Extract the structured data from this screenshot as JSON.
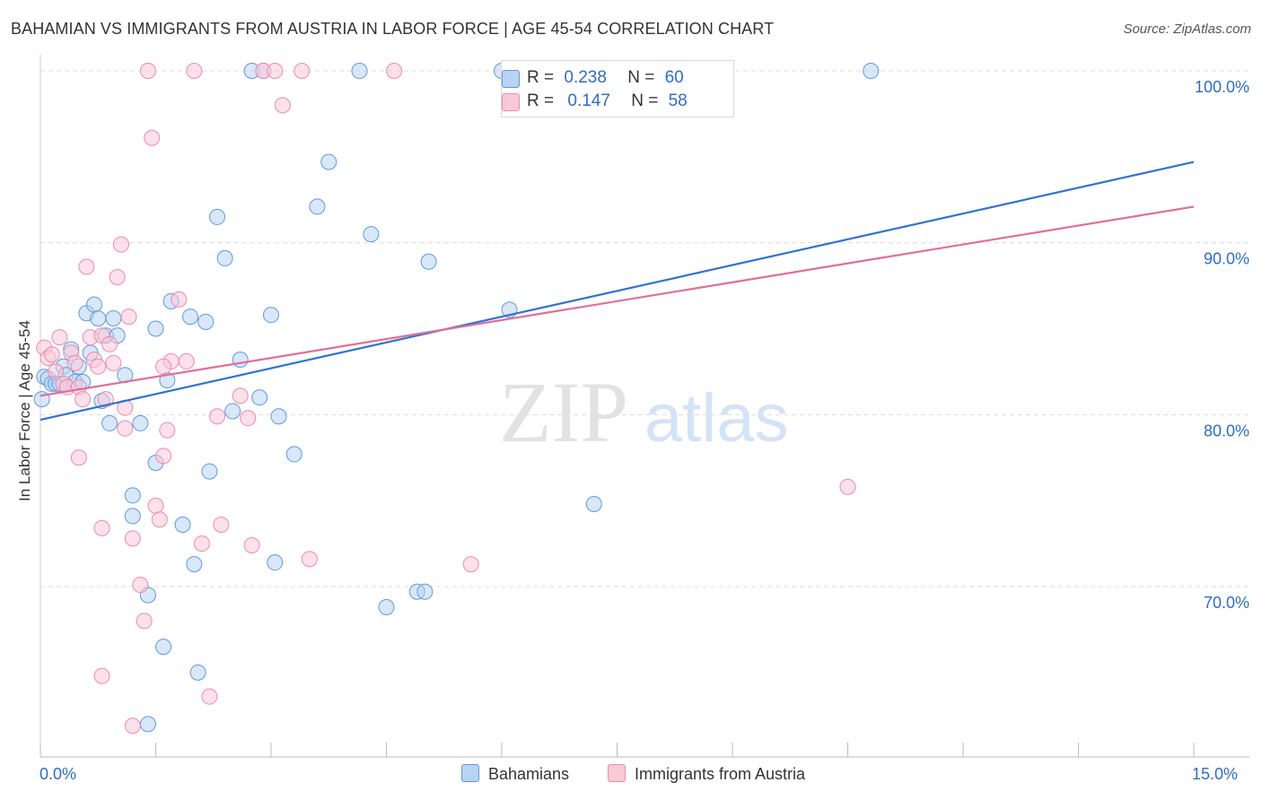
{
  "title": "BAHAMIAN VS IMMIGRANTS FROM AUSTRIA IN LABOR FORCE | AGE 45-54 CORRELATION CHART",
  "source": "Source: ZipAtlas.com",
  "watermark": {
    "zip": "ZIP",
    "atlas": "atlas"
  },
  "colors": {
    "blue": "#5b9be0",
    "blue_fill": "#b9d3f3",
    "blue_line": "#2f73d0",
    "pink": "#ee8aaa",
    "pink_fill": "#f9c9d8",
    "pink_line": "#e06e98",
    "grid": "#dcdcdc",
    "tick_label": "#2f6cc4"
  },
  "legend_top": {
    "rows": [
      {
        "r_label": "R =",
        "r_value": "0.238",
        "n_label": "N =",
        "n_value": "60"
      },
      {
        "r_label": "R =",
        "r_value": "0.147",
        "n_label": "N =",
        "n_value": "58"
      }
    ]
  },
  "legend_bottom": {
    "series1": "Bahamians",
    "series2": "Immigrants from Austria"
  },
  "x_labels": {
    "left": "0.0%",
    "right": "15.0%"
  },
  "chart_data": {
    "type": "scatter",
    "title": "BAHAMIAN VS IMMIGRANTS FROM AUSTRIA IN LABOR FORCE | AGE 45-54 CORRELATION CHART",
    "xlabel": "",
    "ylabel": "In Labor Force | Age 45-54",
    "xlim": [
      0,
      15
    ],
    "ylim": [
      60,
      102
    ],
    "y_ticks": [
      {
        "value": 100,
        "label": "100.0%"
      },
      {
        "value": 90,
        "label": "90.0%"
      },
      {
        "value": 80,
        "label": "80.0%"
      },
      {
        "value": 70,
        "label": "70.0%"
      }
    ],
    "x_tick_values": [
      0,
      1.5,
      3,
      4.5,
      6,
      7.5,
      9,
      10.5,
      12,
      13.5,
      15
    ],
    "grid": true,
    "legend_position": "top-center",
    "series": [
      {
        "name": "Bahamians",
        "color": "#5b9be0",
        "r": 0.238,
        "n": 60,
        "trend": {
          "x": [
            0,
            15
          ],
          "y": [
            79.7,
            94.7
          ]
        },
        "points": [
          [
            0.02,
            80.9
          ],
          [
            0.05,
            82.2
          ],
          [
            0.1,
            82.1
          ],
          [
            0.15,
            81.8
          ],
          [
            0.2,
            81.8
          ],
          [
            0.25,
            81.8
          ],
          [
            0.3,
            82.8
          ],
          [
            0.33,
            82.3
          ],
          [
            0.4,
            83.8
          ],
          [
            0.45,
            81.9
          ],
          [
            0.5,
            82.8
          ],
          [
            0.55,
            81.9
          ],
          [
            0.6,
            85.9
          ],
          [
            0.65,
            83.6
          ],
          [
            0.7,
            86.4
          ],
          [
            0.75,
            85.6
          ],
          [
            0.8,
            80.8
          ],
          [
            0.85,
            84.6
          ],
          [
            0.9,
            79.5
          ],
          [
            0.95,
            85.6
          ],
          [
            1.1,
            82.3
          ],
          [
            1.2,
            75.3
          ],
          [
            1.3,
            79.5
          ],
          [
            1.4,
            69.5
          ],
          [
            1.5,
            77.2
          ],
          [
            1.6,
            66.5
          ],
          [
            1.65,
            82.0
          ],
          [
            1.7,
            86.6
          ],
          [
            1.85,
            73.6
          ],
          [
            1.95,
            85.7
          ],
          [
            2.0,
            71.3
          ],
          [
            2.05,
            65.0
          ],
          [
            2.15,
            85.4
          ],
          [
            2.2,
            76.7
          ],
          [
            2.3,
            91.5
          ],
          [
            2.4,
            89.1
          ],
          [
            2.5,
            80.2
          ],
          [
            2.6,
            83.2
          ],
          [
            2.75,
            100
          ],
          [
            2.85,
            81.0
          ],
          [
            2.9,
            100
          ],
          [
            3.0,
            85.8
          ],
          [
            3.05,
            71.4
          ],
          [
            3.1,
            79.9
          ],
          [
            3.3,
            77.7
          ],
          [
            3.6,
            92.1
          ],
          [
            3.75,
            94.7
          ],
          [
            4.15,
            100
          ],
          [
            4.3,
            90.5
          ],
          [
            4.5,
            68.8
          ],
          [
            4.9,
            69.7
          ],
          [
            5.0,
            69.7
          ],
          [
            5.05,
            88.9
          ],
          [
            6.0,
            100
          ],
          [
            6.1,
            86.1
          ],
          [
            7.2,
            74.8
          ],
          [
            1.0,
            84.6
          ],
          [
            1.2,
            74.1
          ],
          [
            1.5,
            85.0
          ],
          [
            1.4,
            62.0
          ],
          [
            10.8,
            100
          ]
        ]
      },
      {
        "name": "Immigrants from Austria",
        "color": "#ee8aaa",
        "r": 0.147,
        "n": 58,
        "trend": {
          "x": [
            0,
            15
          ],
          "y": [
            81.1,
            92.1
          ]
        },
        "points": [
          [
            0.05,
            83.9
          ],
          [
            0.1,
            83.3
          ],
          [
            0.15,
            83.5
          ],
          [
            0.2,
            82.5
          ],
          [
            0.25,
            84.5
          ],
          [
            0.3,
            81.8
          ],
          [
            0.35,
            81.6
          ],
          [
            0.4,
            83.6
          ],
          [
            0.45,
            83.0
          ],
          [
            0.5,
            81.6
          ],
          [
            0.5,
            77.5
          ],
          [
            0.55,
            80.9
          ],
          [
            0.6,
            88.6
          ],
          [
            0.65,
            84.5
          ],
          [
            0.7,
            83.2
          ],
          [
            0.75,
            82.8
          ],
          [
            0.8,
            84.6
          ],
          [
            0.8,
            73.4
          ],
          [
            0.85,
            80.9
          ],
          [
            0.9,
            84.1
          ],
          [
            0.95,
            83.0
          ],
          [
            1.0,
            88.0
          ],
          [
            1.05,
            89.9
          ],
          [
            1.1,
            80.4
          ],
          [
            1.15,
            85.7
          ],
          [
            1.2,
            72.8
          ],
          [
            1.3,
            70.1
          ],
          [
            1.35,
            68.0
          ],
          [
            1.4,
            100
          ],
          [
            1.45,
            96.1
          ],
          [
            1.5,
            74.7
          ],
          [
            1.55,
            73.9
          ],
          [
            1.6,
            77.6
          ],
          [
            1.65,
            79.1
          ],
          [
            1.7,
            83.1
          ],
          [
            1.8,
            86.7
          ],
          [
            1.9,
            83.1
          ],
          [
            2.0,
            100
          ],
          [
            2.1,
            72.5
          ],
          [
            2.2,
            63.6
          ],
          [
            2.3,
            79.9
          ],
          [
            2.35,
            73.6
          ],
          [
            2.6,
            81.1
          ],
          [
            2.7,
            79.8
          ],
          [
            2.75,
            72.4
          ],
          [
            2.9,
            100
          ],
          [
            3.05,
            100
          ],
          [
            3.15,
            98.0
          ],
          [
            3.4,
            100
          ],
          [
            3.5,
            71.6
          ],
          [
            4.6,
            100
          ],
          [
            5.6,
            71.3
          ],
          [
            7.1,
            100
          ],
          [
            10.5,
            75.8
          ],
          [
            0.8,
            64.8
          ],
          [
            1.2,
            61.9
          ],
          [
            1.1,
            79.2
          ],
          [
            1.6,
            82.8
          ]
        ]
      }
    ]
  }
}
